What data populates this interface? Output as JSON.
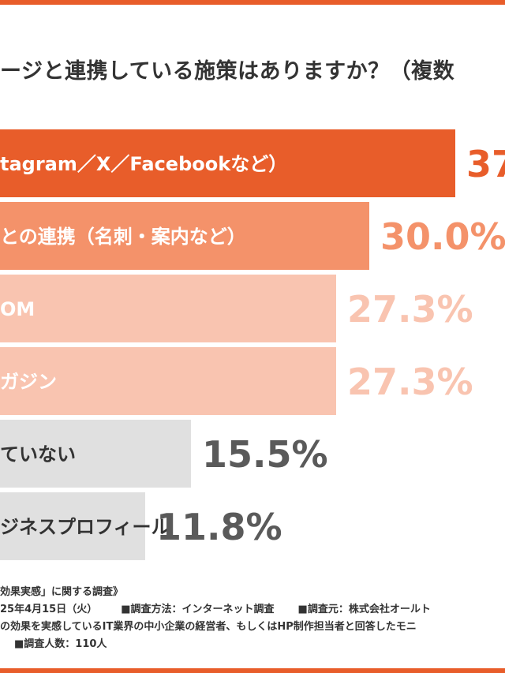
{
  "page": {
    "title": "ージと連携している施策はありますか？（複数"
  },
  "chart_data": {
    "type": "bar",
    "orientation": "horizontal",
    "categories": [
      "tagram／X／Facebookなど）",
      "との連携（名刺・案内など）",
      "OM",
      "ガジン",
      "ていない",
      "ジネスプロフィール"
    ],
    "values": [
      37,
      30.0,
      27.3,
      27.3,
      15.5,
      11.8
    ],
    "value_labels": [
      "37",
      "30.0%",
      "27.3%",
      "27.3%",
      "15.5%",
      "11.8%"
    ],
    "colors": [
      "#e85d2a",
      "#f4926a",
      "#f9c4b0",
      "#f9c4b0",
      "#e0e0e0",
      "#e0e0e0"
    ],
    "value_colors": [
      "#e85d2a",
      "#f4926a",
      "#f9c4b0",
      "#f9c4b0",
      "#5a5a5a",
      "#5a5a5a"
    ],
    "label_colors": [
      "#ffffff",
      "#ffffff",
      "#ffffff",
      "#ffffff",
      "#333333",
      "#333333"
    ]
  },
  "footer": {
    "survey_name": "効果実感」に関する調査》",
    "survey_date": "25年4月15日（火）",
    "survey_method": "■調査方法：インターネット調査",
    "survey_by": "■調査元：株式会社オールト",
    "survey_target": "の効果を実感しているIT業界の中小企業の経営者、もしくはHP制作担当者と回答したモニ",
    "survey_count": "■調査人数：110人"
  }
}
